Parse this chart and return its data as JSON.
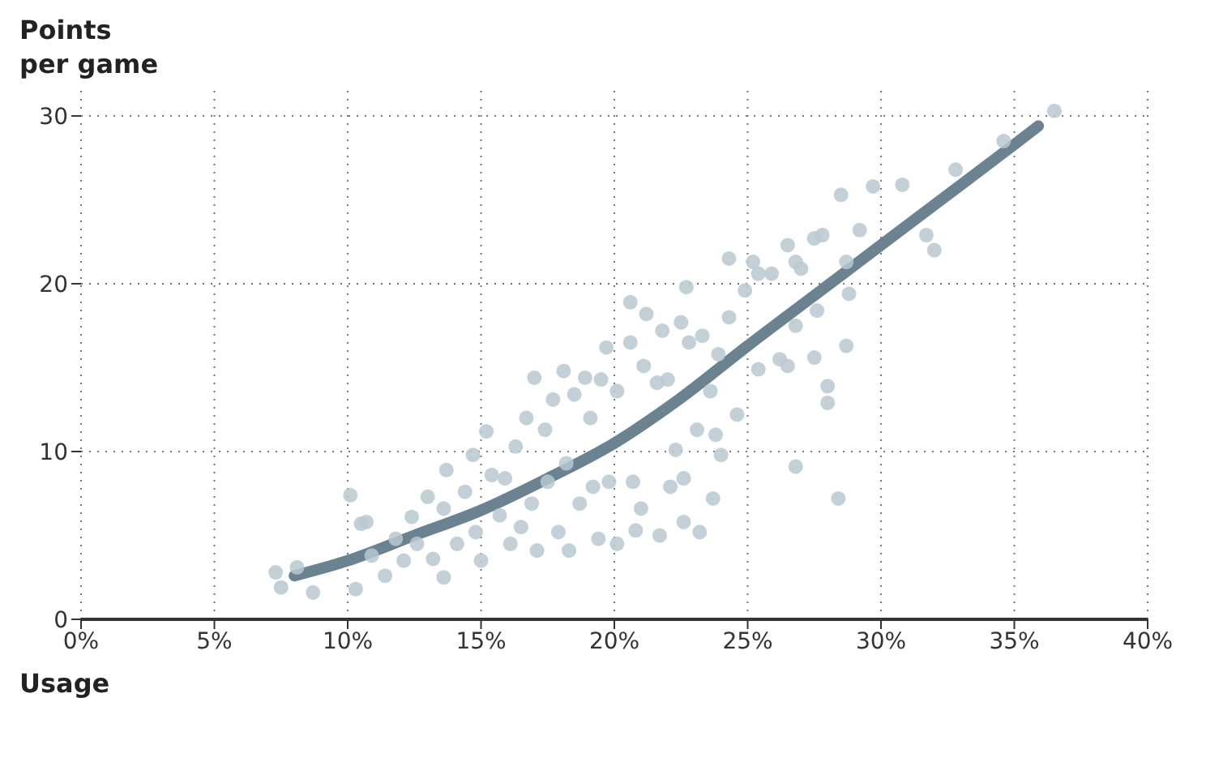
{
  "chart_data": {
    "type": "scatter",
    "xlabel": "Usage",
    "ylabel": "Points per game",
    "xlim": [
      0,
      40
    ],
    "ylim": [
      0,
      31.5
    ],
    "xticks": [
      {
        "value": 0,
        "label": "0%"
      },
      {
        "value": 5,
        "label": "5%"
      },
      {
        "value": 10,
        "label": "10%"
      },
      {
        "value": 15,
        "label": "15%"
      },
      {
        "value": 20,
        "label": "20%"
      },
      {
        "value": 25,
        "label": "25%"
      },
      {
        "value": 30,
        "label": "30%"
      },
      {
        "value": 35,
        "label": "35%"
      },
      {
        "value": 40,
        "label": "40%"
      }
    ],
    "yticks": [
      0,
      10,
      20,
      30
    ],
    "grid": true,
    "marker": "circle",
    "series": [
      {
        "color": "#b9c8d1",
        "x": [
          7.3,
          7.5,
          8.1,
          8.7,
          10.1,
          10.3,
          10.5,
          10.7,
          10.9,
          11.4,
          11.8,
          12.1,
          12.4,
          12.6,
          13.0,
          13.2,
          13.6,
          13.6,
          13.7,
          14.1,
          14.4,
          14.7,
          14.8,
          15.2,
          15.0,
          15.4,
          15.7,
          15.9,
          16.1,
          16.3,
          16.5,
          16.7,
          16.9,
          17.0,
          17.1,
          17.4,
          17.5,
          17.7,
          17.9,
          18.1,
          18.2,
          18.3,
          18.5,
          18.7,
          18.9,
          19.1,
          19.2,
          19.4,
          19.5,
          19.7,
          19.8,
          20.1,
          20.1,
          20.6,
          20.6,
          20.7,
          21.2,
          22.7,
          21.8,
          22.5,
          22.8,
          23.3,
          21.6,
          22.0,
          21.1,
          23.6,
          23.9,
          24.6,
          24.3,
          24.3,
          24.9,
          25.2,
          25.4,
          25.4,
          25.9,
          26.2,
          26.5,
          26.5,
          26.8,
          26.8,
          27.0,
          27.5,
          27.5,
          27.8,
          27.6,
          28.0,
          28.0,
          26.8,
          28.4,
          28.7,
          28.8,
          28.7,
          28.5,
          29.2,
          29.7,
          30.8,
          31.7,
          32.0,
          32.8,
          34.6,
          36.5,
          23.2,
          22.6,
          23.7,
          22.6,
          22.1,
          24.0,
          23.8,
          23.1,
          22.3,
          21.0,
          21.7,
          20.8
        ],
        "values": [
          2.8,
          1.9,
          3.1,
          1.6,
          7.4,
          1.8,
          5.7,
          5.8,
          3.8,
          2.6,
          4.8,
          3.5,
          6.1,
          4.5,
          7.3,
          3.6,
          2.5,
          6.6,
          8.9,
          4.5,
          7.6,
          9.8,
          5.2,
          11.2,
          3.5,
          8.6,
          6.2,
          8.4,
          4.5,
          10.3,
          5.5,
          12.0,
          6.9,
          14.4,
          4.1,
          11.3,
          8.2,
          13.1,
          5.2,
          14.8,
          9.3,
          4.1,
          13.4,
          6.9,
          14.4,
          12.0,
          7.9,
          4.8,
          14.3,
          16.2,
          8.2,
          4.5,
          13.6,
          18.9,
          16.5,
          8.2,
          18.2,
          19.8,
          17.2,
          17.7,
          16.5,
          16.9,
          14.1,
          14.3,
          15.1,
          13.6,
          15.8,
          12.2,
          21.5,
          18.0,
          19.6,
          21.3,
          20.6,
          14.9,
          20.6,
          15.5,
          15.1,
          22.3,
          21.3,
          17.5,
          20.9,
          15.6,
          22.7,
          22.9,
          18.4,
          13.9,
          12.9,
          9.1,
          7.2,
          16.3,
          19.4,
          21.3,
          25.3,
          23.2,
          25.8,
          25.9,
          22.9,
          22.0,
          26.8,
          28.5,
          30.3,
          5.2,
          5.8,
          7.2,
          8.4,
          7.9,
          9.8,
          11.0,
          11.3,
          10.1,
          6.6,
          5.0,
          5.3
        ]
      },
      {
        "type": "line",
        "marker": "none",
        "color": "#6b8391",
        "x": [
          8,
          10,
          12.5,
          15,
          17.5,
          20,
          22.5,
          25,
          27.5,
          30,
          32.5,
          35,
          35.9
        ],
        "values": [
          2.6,
          3.5,
          5,
          6.5,
          8.4,
          10.5,
          13.2,
          16.3,
          19.3,
          22.3,
          25.3,
          28.3,
          29.4
        ]
      }
    ]
  }
}
